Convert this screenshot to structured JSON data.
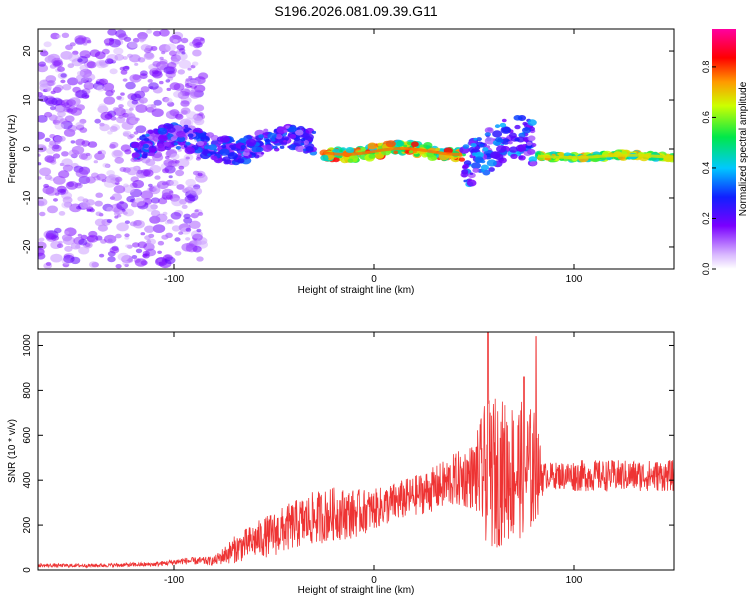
{
  "figure_title": "S196.2026.081.09.39.G11",
  "chart_data": [
    {
      "type": "heatmap",
      "title": "S196.2026.081.09.39.G11",
      "xlabel": "Height of straight line (km)",
      "ylabel": "Frequency (Hz)",
      "xlim": [
        -168,
        150
      ],
      "ylim": [
        -24.5,
        24.5
      ],
      "xticks": [
        -100,
        0,
        100
      ],
      "yticks": [
        -20,
        -10,
        0,
        10,
        20
      ],
      "colorbar": {
        "label": "Normalized spectral amplitude",
        "range": [
          0.0,
          0.95
        ],
        "ticks": [
          0.0,
          0.2,
          0.4,
          0.6,
          0.8
        ],
        "colormap": "rainbow (white - violet - blue - cyan - green - yellow - red - magenta)"
      },
      "description_points": [
        {
          "x_range": [
            -168,
            -85
          ],
          "freq": "scattered -24..24",
          "amplitude": "0.05-0.2",
          "note": "diffuse noise"
        },
        {
          "x_range": [
            -120,
            -30
          ],
          "freq": "about -2..4",
          "amplitude": "0.1-0.35",
          "note": "broken trace"
        },
        {
          "x_range": [
            -25,
            45
          ],
          "freq": "about -2..1",
          "amplitude": "0.4-0.85",
          "note": "strong trace"
        },
        {
          "x_range": [
            45,
            80
          ],
          "freq": "about -6..5",
          "amplitude": "0.1-0.4",
          "note": "scattered trace"
        },
        {
          "x_range": [
            82,
            150
          ],
          "freq": "about -1.5",
          "amplitude": "0.4-0.75",
          "note": "steady trace"
        }
      ]
    },
    {
      "type": "line",
      "title": "",
      "xlabel": "Height of straight line (km)",
      "ylabel": "SNR (10 * v/v)",
      "xlim": [
        -168,
        150
      ],
      "ylim": [
        0,
        1060
      ],
      "xticks": [
        -100,
        0,
        100
      ],
      "yticks": [
        0,
        200,
        400,
        600,
        800,
        1000
      ],
      "series": [
        {
          "name": "SNR",
          "color": "#ee3333",
          "x": [
            -168,
            -140,
            -110,
            -95,
            -80,
            -70,
            -60,
            -50,
            -40,
            -30,
            -20,
            -10,
            0,
            10,
            20,
            30,
            40,
            50,
            55,
            60,
            65,
            70,
            75,
            80,
            85,
            90,
            100,
            110,
            120,
            130,
            140,
            150
          ],
          "y": [
            20,
            20,
            25,
            40,
            40,
            90,
            130,
            160,
            200,
            230,
            250,
            250,
            270,
            300,
            330,
            360,
            400,
            420,
            430,
            430,
            440,
            440,
            450,
            440,
            420,
            420,
            420,
            420,
            420,
            420,
            420,
            420
          ],
          "spread": [
            8,
            8,
            10,
            15,
            20,
            60,
            80,
            100,
            110,
            120,
            120,
            110,
            90,
            90,
            90,
            100,
            120,
            150,
            300,
            350,
            320,
            320,
            300,
            280,
            60,
            60,
            70,
            70,
            70,
            70,
            70,
            70
          ],
          "peaks": [
            {
              "x": 57,
              "y": 1060
            },
            {
              "x": 81,
              "y": 1040
            },
            {
              "x": 75,
              "y": 860
            }
          ]
        }
      ]
    }
  ]
}
